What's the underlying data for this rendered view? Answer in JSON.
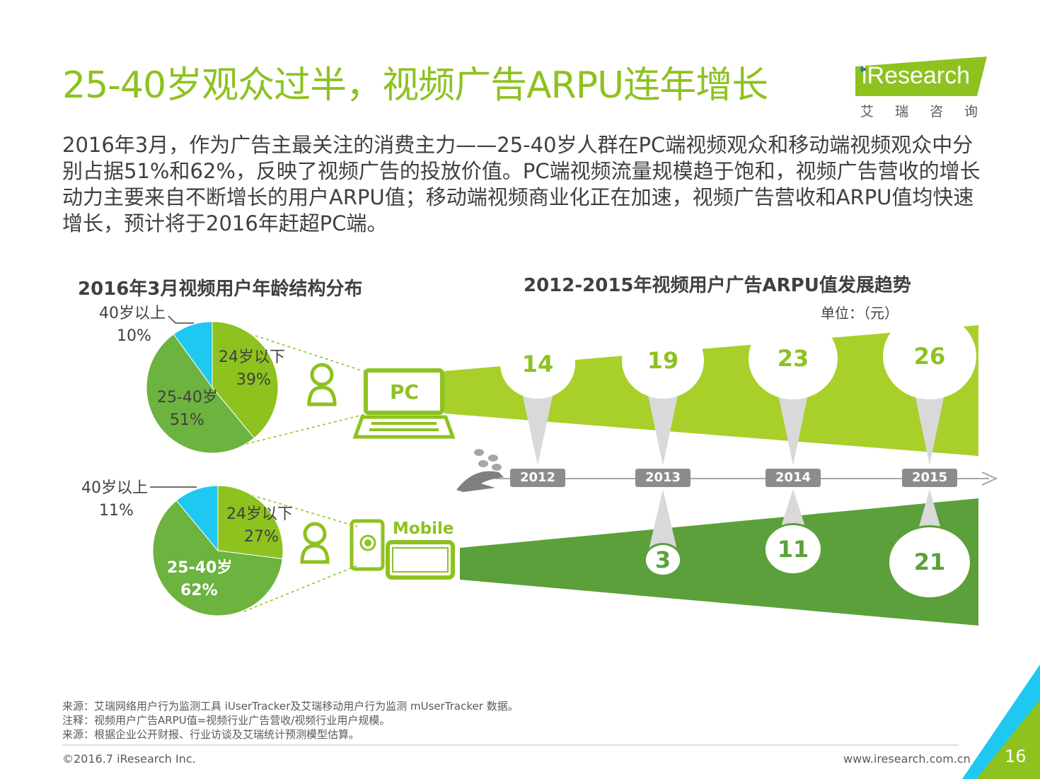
{
  "header": {
    "title": "25-40岁观众过半，视频广告ARPU连年增长",
    "logo_text": "iResearch",
    "logo_sub": "艾瑞咨询"
  },
  "lead": "2016年3月，作为广告主最关注的消费主力——25-40岁人群在PC端视频观众和移动端视频观众中分别占据51%和62%，反映了视频广告的投放价值。PC端视频流量规模趋于饱和，视频广告营收的增长动力主要来自不断增长的用户ARPU值；移动端视频商业化正在加速，视频广告营收和ARPU值均快速增长，预计将于2016年赶超PC端。",
  "left_chart_title": "2016年3月视频用户年龄结构分布",
  "right_chart_title": "2012-2015年视频用户广告ARPU值发展趋势",
  "unit": "单位：（元）",
  "devices": {
    "pc": "PC",
    "mobile": "Mobile"
  },
  "chart_data": [
    {
      "type": "pie",
      "name": "PC",
      "slices": [
        {
          "label": "24岁以下",
          "value": 39,
          "display": "39%",
          "color": "#8dc21f"
        },
        {
          "label": "25-40岁",
          "value": 51,
          "display": "51%",
          "color": "#6db33f"
        },
        {
          "label": "40岁以上",
          "value": 10,
          "display": "10%",
          "color": "#1ec8f0"
        }
      ]
    },
    {
      "type": "pie",
      "name": "Mobile",
      "slices": [
        {
          "label": "24岁以下",
          "value": 27,
          "display": "27%",
          "color": "#8dc21f"
        },
        {
          "label": "25-40岁",
          "value": 62,
          "display": "62%",
          "color": "#6db33f"
        },
        {
          "label": "40岁以上",
          "value": 11,
          "display": "11%",
          "color": "#1ec8f0"
        }
      ]
    },
    {
      "type": "timeline",
      "title": "2012-2015年视频用户广告ARPU值发展趋势",
      "unit": "元",
      "categories": [
        "2012",
        "2013",
        "2014",
        "2015"
      ],
      "series": [
        {
          "name": "PC",
          "values": [
            14,
            19,
            23,
            26
          ]
        },
        {
          "name": "Mobile",
          "values": [
            null,
            3,
            11,
            21
          ]
        }
      ]
    }
  ],
  "source_lines": [
    "来源：艾瑞网络用户行为监测工具 iUserTracker及艾瑞移动用户行为监测 mUserTracker 数据。",
    "注释：视频用户广告ARPU值=视频行业广告营收/视频行业用户规模。",
    "来源：根据企业公开财报、行业访谈及艾瑞统计预测模型估算。"
  ],
  "footer": {
    "copyright": "©2016.7 iResearch Inc.",
    "url": "www.iresearch.com.cn",
    "page": "16"
  },
  "colors": {
    "accent": "#8dc21f",
    "dark_green": "#5ba03a",
    "cyan": "#1ec8f0",
    "gray": "#8c8c8c"
  }
}
